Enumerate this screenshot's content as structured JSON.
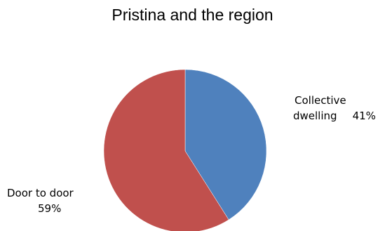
{
  "chart_data": {
    "type": "pie",
    "title": "Pristina and the region",
    "slices": [
      {
        "label_line1": "Collective",
        "label_line2": "dwelling",
        "value": 41,
        "percent_label": "41%",
        "color": "#4F81BD"
      },
      {
        "label_line1": "Door to door",
        "label_line2": "",
        "value": 59,
        "percent_label": "59%",
        "color": "#C0504D"
      }
    ],
    "legend": "none"
  }
}
